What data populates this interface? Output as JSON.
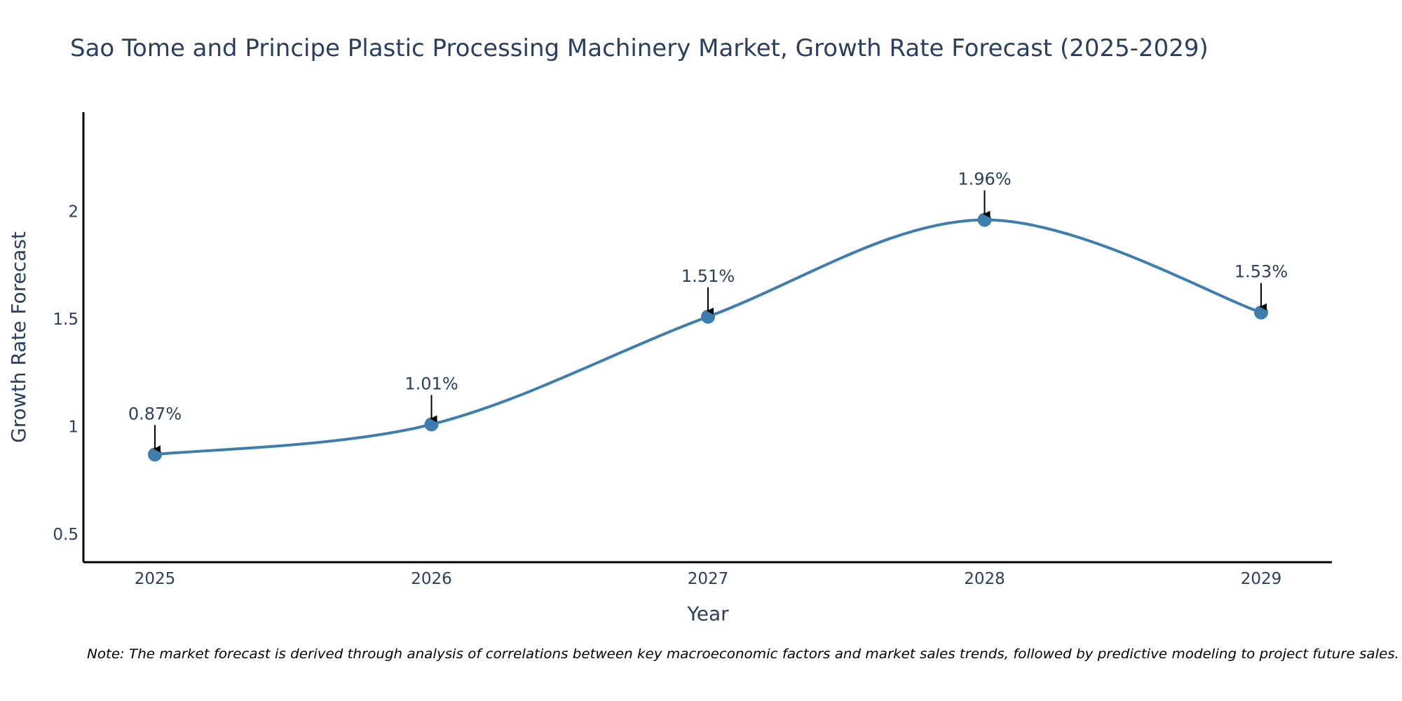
{
  "chart_data": {
    "type": "line",
    "title": "Sao Tome and Principe Plastic Processing Machinery Market, Growth Rate Forecast (2025-2029)",
    "xlabel": "Year",
    "ylabel": "Growth Rate Forecast",
    "categories": [
      "2025",
      "2026",
      "2027",
      "2028",
      "2029"
    ],
    "values": [
      0.87,
      1.01,
      1.51,
      1.96,
      1.53
    ],
    "data_labels": [
      "0.87%",
      "1.01%",
      "1.51%",
      "1.96%",
      "1.53%"
    ],
    "yticks": [
      0.5,
      1,
      1.5,
      2
    ],
    "ytick_labels": [
      "0.5",
      "1",
      "1.5",
      "2"
    ],
    "ylim": [
      0.37,
      2.46
    ],
    "grid": false,
    "line_shape": "spline",
    "colors": {
      "line": "#3d7eae",
      "marker": "#3d7eae",
      "axis": "#000000",
      "arrow": "#000000",
      "text": "#2a3f5f"
    },
    "note": "Note: The market forecast is derived through analysis of correlations between key macroeconomic factors and market sales trends, followed by predictive modeling to project future sales."
  }
}
